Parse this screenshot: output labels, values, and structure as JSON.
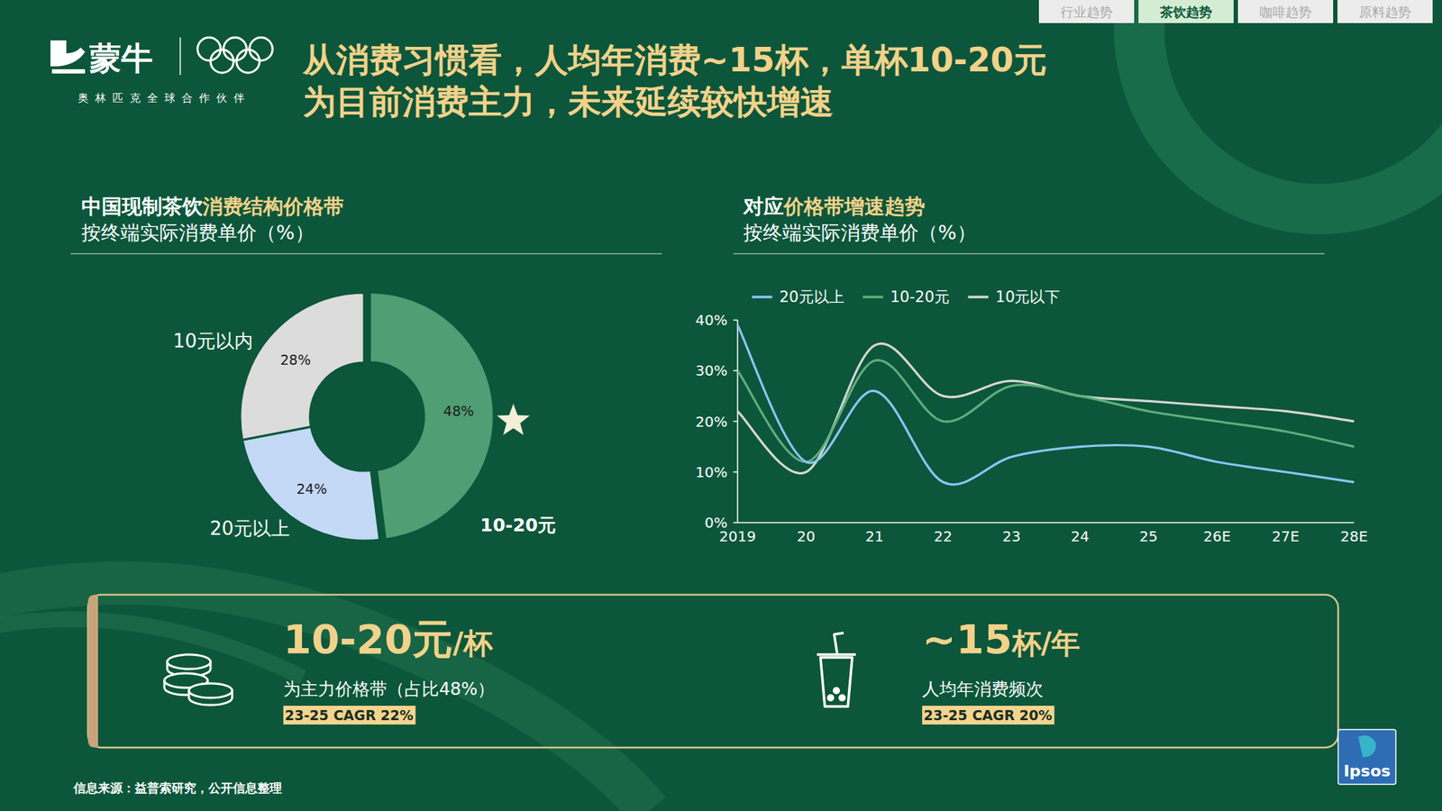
{
  "tabs": [
    "行业趋势",
    "茶饮趋势",
    "咖啡趋势",
    "原料趋势"
  ],
  "logo": {
    "brand": "蒙牛",
    "tagline": "奥林匹克全球合作伙伴"
  },
  "title": [
    "从消费习惯看，人均年消费~15杯，单杯10-20元",
    "为目前消费主力，未来延续较快增速"
  ],
  "chart_data": [
    {
      "type": "pie",
      "title": [
        "中国现制茶饮",
        "消费结构价格带"
      ],
      "subtitle": "按终端实际消费单价（%）",
      "categories": [
        "10-20元",
        "20元以上",
        "10元以内"
      ],
      "values": [
        48,
        24,
        28
      ],
      "value_labels": [
        "48%",
        "24%",
        "28%"
      ],
      "colors": [
        "#4f9e74",
        "#c4d9f6",
        "#dcdcdc"
      ],
      "data_labels": true
    },
    {
      "type": "line",
      "title": [
        "对应",
        "价格带增速趋势"
      ],
      "subtitle": "按终端实际消费单价（%）",
      "categories": [
        "2019",
        "20",
        "21",
        "22",
        "23",
        "24",
        "25",
        "26E",
        "27E",
        "28E"
      ],
      "series": [
        {
          "name": "20元以上",
          "color": "#8cc4f2",
          "values": [
            39,
            12,
            26,
            8,
            13,
            15,
            15,
            12,
            10,
            8
          ]
        },
        {
          "name": "10-20元",
          "color": "#5fae7c",
          "values": [
            30,
            12,
            32,
            20,
            27,
            25,
            22,
            20,
            18,
            15
          ]
        },
        {
          "name": "10元以下",
          "color": "#d6d6d6",
          "values": [
            22,
            10,
            35,
            25,
            28,
            25,
            24,
            23,
            22,
            20
          ]
        }
      ],
      "ylim": [
        0,
        40
      ],
      "yticks": [
        {
          "value": 0,
          "label": "0%"
        },
        {
          "value": 10,
          "label": "10%"
        },
        {
          "value": 20,
          "label": "20%"
        },
        {
          "value": 30,
          "label": "30%"
        },
        {
          "value": 40,
          "label": "40%"
        }
      ],
      "grid": false,
      "legend": "top"
    }
  ],
  "summary": [
    {
      "main": "10-20元",
      "unit": "/杯",
      "label": "为主力价格带（占比48%）",
      "cagr": "23-25 CAGR 22%"
    },
    {
      "main": "~15",
      "unit": "杯/年",
      "label": "人均年消费频次",
      "cagr": "23-25 CAGR 20%"
    }
  ],
  "source": "信息来源：益普索研究，公开信息整理",
  "badge": "Ipsos"
}
